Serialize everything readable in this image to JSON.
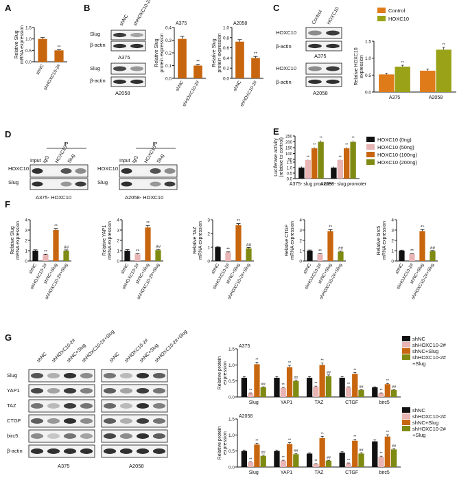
{
  "colors": {
    "shNC": "#c8660f",
    "shHOXC10": "#c8660f",
    "control": "#e07b1a",
    "hoxc10": "#9aa318",
    "black": "#111111",
    "pink": "#e8b4b4",
    "orange": "#c8660f",
    "olive": "#7f8a12"
  },
  "panels": {
    "A": "A",
    "B": "B",
    "C": "C",
    "D": "D",
    "E": "E",
    "F": "F",
    "G": "G"
  },
  "blots": {
    "B_top": {
      "cell": "A375",
      "lanes": [
        "shNC",
        "shHOXC10-2#"
      ],
      "rows": [
        "Slug",
        "β-actin"
      ]
    },
    "B_bottom": {
      "cell": "A2058",
      "rows": [
        "Slug",
        "β-actin"
      ]
    },
    "C_top": {
      "cell": "A375",
      "lanes": [
        "Control",
        "HOXC10"
      ],
      "rows": [
        "HOXC10",
        "β-actin"
      ]
    },
    "C_bottom": {
      "cell": "A2058",
      "rows": [
        "HOXC10",
        "β-actin"
      ]
    },
    "D_left": {
      "title": "IP",
      "lanes": [
        "Input",
        "IgG",
        "HOXC10",
        "Slug"
      ],
      "rows": [
        "HOXC10",
        "Slug"
      ],
      "caption": "A375- HOXC10"
    },
    "D_right": {
      "title": "IP",
      "lanes": [
        "Input",
        "IgG",
        "HOXC10",
        "Slug"
      ],
      "rows": [
        "HOXC10",
        "Slug"
      ],
      "caption": "A2058- HOXC10"
    },
    "G_left": {
      "lanes": [
        "shNC",
        "shHOXC10-2#",
        "shNC+Slug",
        "shHOXC10-2#+Slug"
      ],
      "rows": [
        "Slug",
        "YAP1",
        "TAZ",
        "CTGF",
        "birc5",
        "β-actin"
      ],
      "caption": "A375"
    },
    "G_right": {
      "lanes": [
        "shNC",
        "shHOXC10-2#",
        "shNC+Slug",
        "shHOXC10-2#+Slug"
      ],
      "caption": "A2058"
    }
  },
  "chart_data": [
    {
      "id": "A",
      "type": "bar",
      "categories": [
        "shNC",
        "shHOXC10-2#"
      ],
      "values": [
        1.0,
        0.5
      ],
      "errors": [
        0.06,
        0.03
      ],
      "ylabel": "Relative Slug mRNA expression",
      "ylim": [
        0,
        1.5
      ],
      "yticks": [
        "0.0",
        "0.5",
        "1.0",
        "1.5"
      ],
      "annotations": [
        "",
        "**"
      ]
    },
    {
      "id": "B1",
      "type": "bar",
      "title": "A375",
      "categories": [
        "shNC",
        "shHOXC10-2#"
      ],
      "values": [
        0.31,
        0.1
      ],
      "errors": [
        0.02,
        0.01
      ],
      "ylabel": "Relative Slug protein expression",
      "ylim": [
        0,
        0.4
      ],
      "yticks": [
        "0.0",
        "0.1",
        "0.2",
        "0.3",
        "0.4"
      ],
      "annotations": [
        "",
        "**"
      ]
    },
    {
      "id": "B2",
      "type": "bar",
      "title": "A2058",
      "categories": [
        "shNC",
        "shHOXC10-2#"
      ],
      "values": [
        0.72,
        0.4
      ],
      "errors": [
        0.04,
        0.03
      ],
      "ylabel": "Relative Slug protein expression",
      "ylim": [
        0,
        1.0
      ],
      "yticks": [
        "0.0",
        "0.2",
        "0.4",
        "0.6",
        "0.8",
        "1.0"
      ],
      "annotations": [
        "",
        "**"
      ]
    },
    {
      "id": "C",
      "type": "bar",
      "categories": [
        "A375",
        "A2058"
      ],
      "series": [
        {
          "name": "Control",
          "values": [
            0.52,
            0.63
          ],
          "errors": [
            0.04,
            0.05
          ]
        },
        {
          "name": "HOXC10",
          "values": [
            0.75,
            1.25
          ],
          "errors": [
            0.04,
            0.07
          ]
        }
      ],
      "ylabel": "Relative HOXC10 expression",
      "ylim": [
        0,
        1.5
      ],
      "yticks": [
        "0.0",
        "0.5",
        "1.0",
        "1.5"
      ],
      "annotations": [
        "",
        "**",
        "",
        "**"
      ],
      "legend": "top"
    },
    {
      "id": "E",
      "type": "bar",
      "categories": [
        "A375- slug promoter",
        "A2058- slug promoter"
      ],
      "series": [
        {
          "name": "HOXC10 (0ng)",
          "values": [
            1.0,
            1.0
          ],
          "errors": [
            0.1,
            0.1
          ]
        },
        {
          "name": "HOXC10 (50ng)",
          "values": [
            45,
            45
          ],
          "errors": [
            3,
            3
          ]
        },
        {
          "name": "HOXC10 (100ng)",
          "values": [
            145,
            145
          ],
          "errors": [
            8,
            8
          ]
        },
        {
          "name": "HOXC10 (200ng)",
          "values": [
            200,
            200
          ],
          "errors": [
            12,
            12
          ]
        }
      ],
      "ylabel": "Luciferase activity (relative to control)",
      "ytick_labels": [
        "0.0",
        "0.5",
        "1.0",
        "1.5",
        "50",
        "100",
        "150",
        "200",
        "250"
      ],
      "scale": "broken",
      "legend": "right"
    },
    {
      "id": "F1",
      "type": "bar",
      "categories": [
        "shNC",
        "shHOXC10-2#",
        "shNC+Slug",
        "shHOXC10-2#+Slug"
      ],
      "values": [
        1.0,
        0.6,
        3.0,
        1.0
      ],
      "errors": [
        0.08,
        0.05,
        0.15,
        0.07
      ],
      "ylabel": "Relative Slug mRNA expression",
      "ylim": [
        0,
        4
      ],
      "yticks": [
        "0",
        "1",
        "2",
        "3",
        "4"
      ],
      "annotations": [
        "",
        "**",
        "**",
        "##"
      ]
    },
    {
      "id": "F2",
      "type": "bar",
      "categories": [
        "shNC",
        "shHOXC10-2#",
        "shNC+Slug",
        "shHOXC10-2#+Slug"
      ],
      "values": [
        1.0,
        0.65,
        3.25,
        1.05
      ],
      "errors": [
        0.1,
        0.05,
        0.2,
        0.07
      ],
      "ylabel": "Relative YAP1 mRNA expression",
      "ylim": [
        0,
        4
      ],
      "yticks": [
        "0",
        "1",
        "2",
        "3",
        "4"
      ],
      "annotations": [
        "",
        "**",
        "**",
        "##"
      ]
    },
    {
      "id": "F3",
      "type": "bar",
      "categories": [
        "shNC",
        "shHOXC10-2#",
        "shNC+Slug",
        "shHOXC10-2#+Slug"
      ],
      "values": [
        1.0,
        0.62,
        2.6,
        0.92
      ],
      "errors": [
        0.05,
        0.04,
        0.12,
        0.06
      ],
      "ylabel": "Relative TAZ mRNA expression",
      "ylim": [
        0,
        3
      ],
      "yticks": [
        "0",
        "1",
        "2",
        "3"
      ],
      "annotations": [
        "",
        "**",
        "**",
        "##"
      ]
    },
    {
      "id": "F4",
      "type": "bar",
      "categories": [
        "shNC",
        "shHOXC10-2#",
        "shNC+Slug",
        "shHOXC10-2#+Slug"
      ],
      "values": [
        1.0,
        0.65,
        2.9,
        0.9
      ],
      "errors": [
        0.06,
        0.05,
        0.13,
        0.06
      ],
      "ylabel": "Relative CTGF mRNA expression",
      "ylim": [
        0,
        4
      ],
      "yticks": [
        "0",
        "1",
        "2",
        "3",
        "4"
      ],
      "annotations": [
        "",
        "**",
        "**",
        "##"
      ]
    },
    {
      "id": "F5",
      "type": "bar",
      "categories": [
        "shNC",
        "shHOXC10-2#",
        "shNC+Slug",
        "shHOXC10-2#+Slug"
      ],
      "values": [
        1.0,
        0.68,
        2.9,
        0.95
      ],
      "errors": [
        0.05,
        0.04,
        0.15,
        0.06
      ],
      "ylabel": "Relative birc5 mRNA expression",
      "ylim": [
        0,
        4
      ],
      "yticks": [
        "0",
        "1",
        "2",
        "3",
        "4"
      ],
      "annotations": [
        "",
        "**",
        "**",
        "##"
      ]
    },
    {
      "id": "G1",
      "type": "bar",
      "title": "A375",
      "categories": [
        "Slug",
        "YAP1",
        "TAZ",
        "CTGF",
        "birc5"
      ],
      "series": [
        {
          "name": "shNC",
          "values": [
            0.6,
            0.6,
            0.6,
            0.6,
            0.3
          ]
        },
        {
          "name": "shHOXC10-2#",
          "values": [
            0.12,
            0.28,
            0.32,
            0.3,
            0.12
          ]
        },
        {
          "name": "shNC+Slug",
          "values": [
            1.02,
            0.93,
            1.0,
            0.72,
            0.4
          ]
        },
        {
          "name": "shHOXC10-2#\n+Slug",
          "values": [
            0.3,
            0.5,
            0.65,
            0.22,
            0.22
          ]
        }
      ],
      "ylabel": "Relative protein expression",
      "ylim": [
        0,
        1.5
      ],
      "yticks": [
        "0.0",
        "0.5",
        "1.0",
        "1.5"
      ],
      "legend": "top-right"
    },
    {
      "id": "G2",
      "type": "bar",
      "title": "A2058",
      "categories": [
        "Slug",
        "YAP1",
        "TAZ",
        "CTGF",
        "birc5"
      ],
      "series": [
        {
          "name": "shNC",
          "values": [
            0.5,
            0.5,
            0.42,
            0.45,
            0.8
          ]
        },
        {
          "name": "shHOXC10-2#",
          "values": [
            0.15,
            0.2,
            0.1,
            0.12,
            0.32
          ]
        },
        {
          "name": "shNC+Slug",
          "values": [
            0.7,
            0.72,
            0.9,
            0.82,
            0.95
          ]
        },
        {
          "name": "shHOXC10-2#\n+Slug",
          "values": [
            0.35,
            0.4,
            0.2,
            0.42,
            0.55
          ]
        }
      ],
      "ylabel": "Relative protein expression",
      "ylim": [
        0,
        1.5
      ],
      "yticks": [
        "0.0",
        "0.5",
        "1.0",
        "1.5"
      ],
      "legend": "top-right"
    }
  ]
}
